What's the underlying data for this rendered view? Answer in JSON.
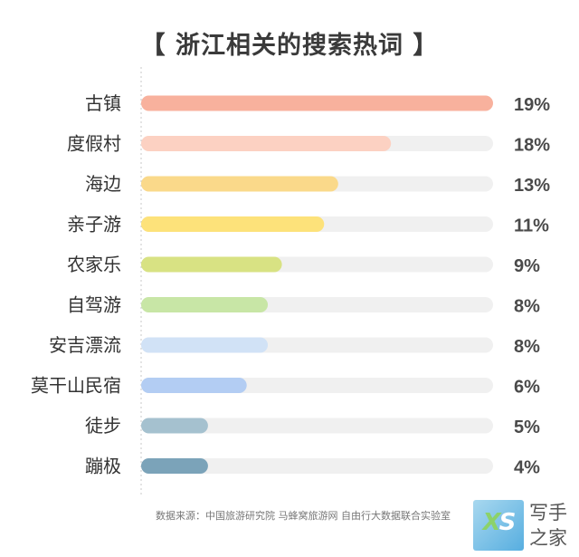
{
  "chart_data": {
    "type": "bar",
    "orientation": "horizontal",
    "title": "【 浙江相关的搜索热词 】",
    "categories": [
      "古镇",
      "度假村",
      "海边",
      "亲子游",
      "农家乐",
      "自驾游",
      "安吉漂流",
      "莫干山民宿",
      "徒步",
      "蹦极"
    ],
    "values": [
      19,
      18,
      13,
      11,
      9,
      8,
      8,
      6,
      5,
      4
    ],
    "value_labels": [
      "19%",
      "18%",
      "13%",
      "11%",
      "9%",
      "8%",
      "8%",
      "6%",
      "5%",
      "4%"
    ],
    "bar_fraction": [
      1.0,
      0.71,
      0.56,
      0.52,
      0.4,
      0.36,
      0.36,
      0.3,
      0.19,
      0.19
    ],
    "bar_colors": [
      "#f8b19d",
      "#fcd1c2",
      "#fad98a",
      "#fde27a",
      "#d8e283",
      "#c8e6a6",
      "#d1e2f6",
      "#b3cdf3",
      "#a5c1cf",
      "#7ba3b9"
    ],
    "track_color": "#f0f0f0",
    "xlabel": "",
    "ylabel": "",
    "grid": false,
    "legend": "none"
  },
  "source_note": "数据来源：中国旅游研究院 马蜂窝旅游网 自由行大数据联合实验室",
  "watermark": {
    "letters_x": "X",
    "letters_s": "S",
    "line1": "写手",
    "line2": "之家"
  }
}
